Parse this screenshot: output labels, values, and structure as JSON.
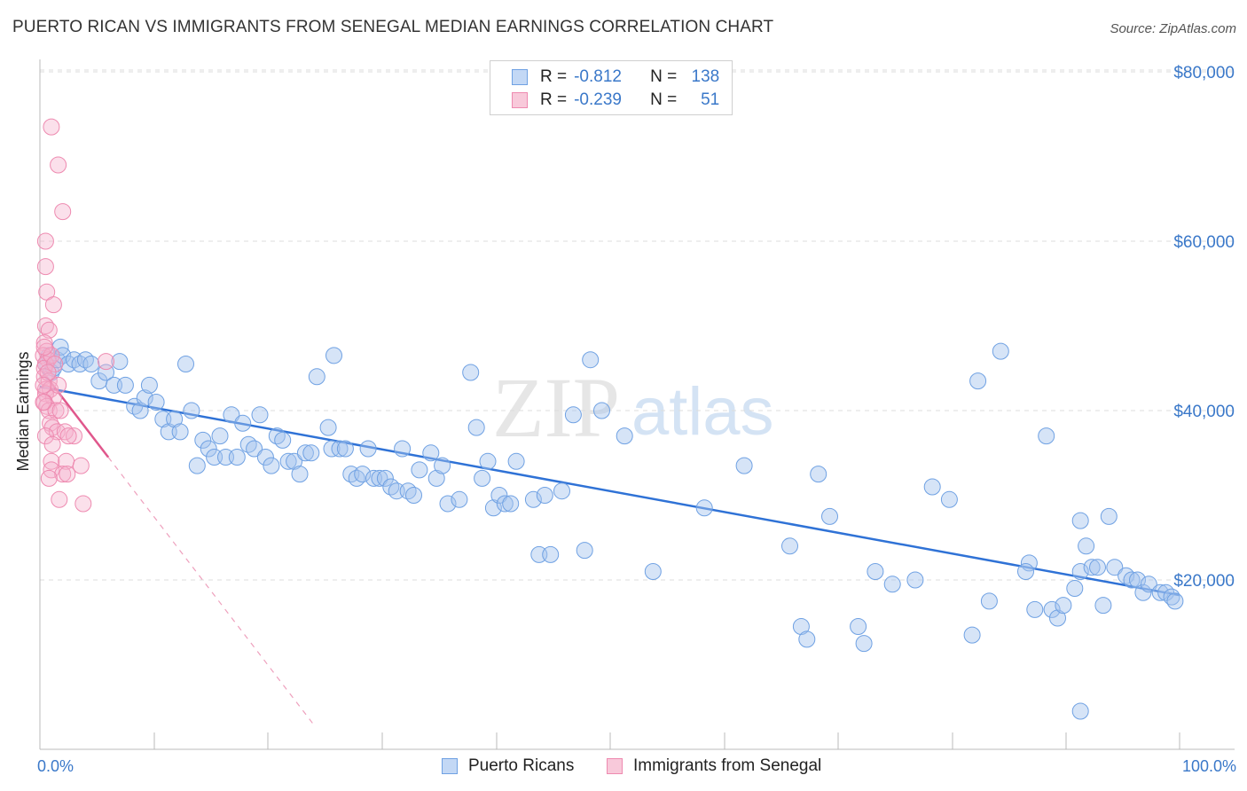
{
  "title": "PUERTO RICAN VS IMMIGRANTS FROM SENEGAL MEDIAN EARNINGS CORRELATION CHART",
  "source": "Source: ZipAtlas.com",
  "watermark": {
    "zip": "ZIP",
    "atlas": "atlas"
  },
  "legend": {
    "rows": [
      {
        "r_label": "R =",
        "r_value": "-0.812",
        "n_label": "N =",
        "n_value": "138",
        "color": "#6fa1e3"
      },
      {
        "r_label": "R =",
        "r_value": "-0.239",
        "n_label": "N =",
        "n_value": "51",
        "color": "#ee8ab0"
      }
    ]
  },
  "bottom_legend": [
    "Puerto Ricans",
    "Immigrants from Senegal"
  ],
  "chart_data": {
    "type": "scatter",
    "title": "PUERTO RICAN VS IMMIGRANTS FROM SENEGAL MEDIAN EARNINGS CORRELATION CHART",
    "xlabel": "",
    "ylabel": "Median Earnings",
    "xlim": [
      0,
      100
    ],
    "ylim": [
      0,
      83000
    ],
    "x_tick_labels": [
      "0.0%",
      "100.0%"
    ],
    "y_ticks": [
      {
        "value": 20000,
        "label": "$20,000"
      },
      {
        "value": 40000,
        "label": "$40,000"
      },
      {
        "value": 60000,
        "label": "$60,000"
      },
      {
        "value": 80000,
        "label": "$80,000"
      }
    ],
    "grid": true,
    "series": [
      {
        "name": "Puerto Ricans",
        "color": "#6fa1e3",
        "points": [
          [
            0.5,
            45500
          ],
          [
            0.8,
            46500
          ],
          [
            1.0,
            44500
          ],
          [
            1.2,
            45000
          ],
          [
            1.5,
            46000
          ],
          [
            1.8,
            47500
          ],
          [
            2.0,
            46500
          ],
          [
            2.5,
            45500
          ],
          [
            3.0,
            46000
          ],
          [
            3.5,
            45500
          ],
          [
            4.0,
            46000
          ],
          [
            4.5,
            45500
          ],
          [
            5.2,
            43500
          ],
          [
            5.8,
            44500
          ],
          [
            7.0,
            45800
          ],
          [
            6.5,
            43000
          ],
          [
            7.5,
            43000
          ],
          [
            8.3,
            40500
          ],
          [
            8.8,
            40000
          ],
          [
            9.2,
            41500
          ],
          [
            9.6,
            43000
          ],
          [
            10.2,
            41000
          ],
          [
            10.8,
            39000
          ],
          [
            11.3,
            37500
          ],
          [
            11.8,
            39000
          ],
          [
            12.3,
            37500
          ],
          [
            12.8,
            45500
          ],
          [
            13.3,
            40000
          ],
          [
            13.8,
            33500
          ],
          [
            14.3,
            36500
          ],
          [
            14.8,
            35500
          ],
          [
            15.3,
            34500
          ],
          [
            15.8,
            37000
          ],
          [
            16.3,
            34500
          ],
          [
            16.8,
            39500
          ],
          [
            17.3,
            34500
          ],
          [
            17.8,
            38500
          ],
          [
            18.3,
            36000
          ],
          [
            18.8,
            35500
          ],
          [
            19.3,
            39500
          ],
          [
            19.8,
            34500
          ],
          [
            20.3,
            33500
          ],
          [
            20.8,
            37000
          ],
          [
            21.3,
            36500
          ],
          [
            21.8,
            34000
          ],
          [
            22.3,
            34000
          ],
          [
            22.8,
            32500
          ],
          [
            23.3,
            35000
          ],
          [
            23.8,
            35000
          ],
          [
            24.3,
            44000
          ],
          [
            25.3,
            38000
          ],
          [
            25.8,
            46500
          ],
          [
            25.6,
            35500
          ],
          [
            26.3,
            35500
          ],
          [
            26.8,
            35500
          ],
          [
            27.3,
            32500
          ],
          [
            27.8,
            32000
          ],
          [
            28.3,
            32500
          ],
          [
            28.8,
            35500
          ],
          [
            29.3,
            32000
          ],
          [
            29.8,
            32000
          ],
          [
            30.3,
            32000
          ],
          [
            30.8,
            31000
          ],
          [
            31.3,
            30500
          ],
          [
            31.8,
            35500
          ],
          [
            32.3,
            30500
          ],
          [
            32.8,
            30000
          ],
          [
            33.3,
            33000
          ],
          [
            34.3,
            35000
          ],
          [
            34.8,
            32000
          ],
          [
            35.3,
            33500
          ],
          [
            35.8,
            29000
          ],
          [
            36.8,
            29500
          ],
          [
            37.8,
            44500
          ],
          [
            38.3,
            38000
          ],
          [
            38.8,
            32000
          ],
          [
            39.3,
            34000
          ],
          [
            39.8,
            28500
          ],
          [
            40.3,
            30000
          ],
          [
            40.8,
            29000
          ],
          [
            41.3,
            29000
          ],
          [
            41.8,
            34000
          ],
          [
            43.3,
            29500
          ],
          [
            43.8,
            23000
          ],
          [
            44.8,
            23000
          ],
          [
            44.3,
            30000
          ],
          [
            45.8,
            30500
          ],
          [
            46.8,
            39500
          ],
          [
            47.8,
            23500
          ],
          [
            48.3,
            46000
          ],
          [
            49.3,
            40000
          ],
          [
            51.3,
            37000
          ],
          [
            53.8,
            21000
          ],
          [
            58.3,
            28500
          ],
          [
            61.8,
            33500
          ],
          [
            65.8,
            24000
          ],
          [
            66.8,
            14500
          ],
          [
            67.3,
            13000
          ],
          [
            68.3,
            32500
          ],
          [
            69.3,
            27500
          ],
          [
            71.8,
            14500
          ],
          [
            72.3,
            12500
          ],
          [
            73.3,
            21000
          ],
          [
            74.8,
            19500
          ],
          [
            76.8,
            20000
          ],
          [
            78.3,
            31000
          ],
          [
            79.8,
            29500
          ],
          [
            81.8,
            13500
          ],
          [
            82.3,
            43500
          ],
          [
            83.3,
            17500
          ],
          [
            84.3,
            47000
          ],
          [
            86.8,
            22000
          ],
          [
            86.5,
            21000
          ],
          [
            87.3,
            16500
          ],
          [
            88.3,
            37000
          ],
          [
            88.8,
            16500
          ],
          [
            89.3,
            15500
          ],
          [
            89.8,
            17000
          ],
          [
            90.8,
            19000
          ],
          [
            91.3,
            27000
          ],
          [
            91.3,
            21000
          ],
          [
            91.8,
            24000
          ],
          [
            92.3,
            21500
          ],
          [
            92.8,
            21500
          ],
          [
            93.3,
            17000
          ],
          [
            93.8,
            27500
          ],
          [
            94.3,
            21500
          ],
          [
            95.3,
            20500
          ],
          [
            95.8,
            20000
          ],
          [
            96.3,
            20000
          ],
          [
            96.8,
            18500
          ],
          [
            97.3,
            19500
          ],
          [
            98.3,
            18500
          ],
          [
            98.8,
            18500
          ],
          [
            99.3,
            18000
          ],
          [
            99.6,
            17500
          ],
          [
            91.3,
            4500
          ]
        ]
      },
      {
        "name": "Immigrants from Senegal",
        "color": "#ee8ab0",
        "points": [
          [
            1.0,
            73500
          ],
          [
            1.6,
            69000
          ],
          [
            2.0,
            63500
          ],
          [
            0.5,
            60000
          ],
          [
            0.5,
            57000
          ],
          [
            0.6,
            54000
          ],
          [
            1.2,
            52500
          ],
          [
            0.5,
            50000
          ],
          [
            0.8,
            49500
          ],
          [
            0.4,
            48000
          ],
          [
            0.6,
            47000
          ],
          [
            0.3,
            46500
          ],
          [
            0.7,
            46000
          ],
          [
            0.5,
            45500
          ],
          [
            0.4,
            45000
          ],
          [
            1.0,
            46500
          ],
          [
            1.3,
            45500
          ],
          [
            0.4,
            44000
          ],
          [
            0.8,
            43500
          ],
          [
            0.5,
            42500
          ],
          [
            0.9,
            42500
          ],
          [
            0.5,
            42000
          ],
          [
            1.2,
            41500
          ],
          [
            0.4,
            41000
          ],
          [
            0.6,
            40500
          ],
          [
            0.8,
            40000
          ],
          [
            1.4,
            40000
          ],
          [
            1.8,
            40000
          ],
          [
            0.9,
            38500
          ],
          [
            1.1,
            38000
          ],
          [
            1.5,
            37500
          ],
          [
            0.5,
            37000
          ],
          [
            2.2,
            37500
          ],
          [
            3.0,
            37000
          ],
          [
            2.5,
            37000
          ],
          [
            1.1,
            36000
          ],
          [
            1.0,
            34000
          ],
          [
            2.3,
            34000
          ],
          [
            3.6,
            33500
          ],
          [
            1.0,
            33000
          ],
          [
            2.0,
            32500
          ],
          [
            2.4,
            32500
          ],
          [
            0.8,
            32000
          ],
          [
            1.7,
            29500
          ],
          [
            3.8,
            29000
          ],
          [
            0.4,
            47500
          ],
          [
            0.7,
            44500
          ],
          [
            1.6,
            43000
          ],
          [
            0.3,
            43000
          ],
          [
            0.3,
            41000
          ],
          [
            5.8,
            45800
          ]
        ]
      }
    ],
    "trend_lines": [
      {
        "series": "Puerto Ricans",
        "x": [
          0,
          100
        ],
        "y": [
          42800,
          18200
        ]
      },
      {
        "series": "Immigrants from Senegal",
        "solid_x": [
          0,
          6.0
        ],
        "dashed_x": [
          6.0,
          24.0
        ],
        "start_y": 45000,
        "slope_per_pct": -1752
      }
    ]
  }
}
